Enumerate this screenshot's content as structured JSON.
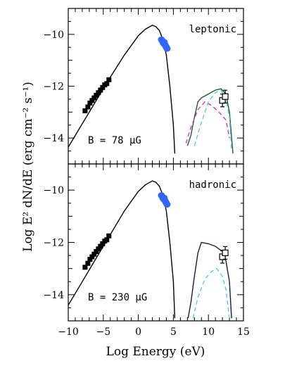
{
  "figure": {
    "ylabel": "Log E² dN/dE  (erg cm⁻² s⁻¹)",
    "xlabel": "Log Energy (eV)"
  },
  "chart_data": [
    {
      "type": "line",
      "panel": "top",
      "title": "leptonic",
      "annotation": "B = 78 μG",
      "xlim": [
        -10,
        15
      ],
      "ylim": [
        -15,
        -9
      ],
      "x_ticks": [
        -10,
        -5,
        0,
        5,
        10,
        15
      ],
      "y_ticks": [
        -14,
        -12,
        -10
      ],
      "y_tick_labels": [
        "−14",
        "−12",
        "−10"
      ],
      "series": [
        {
          "style": "solid",
          "color": "#000000",
          "points": [
            [
              -10,
              -14.35
            ],
            [
              -8,
              -13.45
            ],
            [
              -6,
              -12.55
            ],
            [
              -4,
              -11.65
            ],
            [
              -2,
              -10.8
            ],
            [
              0,
              -10.05
            ],
            [
              1,
              -9.8
            ],
            [
              2,
              -9.65
            ],
            [
              2.5,
              -9.7
            ],
            [
              3,
              -9.85
            ],
            [
              3.5,
              -10.2
            ],
            [
              4,
              -10.8
            ],
            [
              4.5,
              -12.0
            ],
            [
              5,
              -13.5
            ],
            [
              5.2,
              -14.6
            ]
          ]
        },
        {
          "style": "solid",
          "color": "#1f5a3a",
          "points": [
            [
              7,
              -14.3
            ],
            [
              7.5,
              -13.9
            ],
            [
              8,
              -13.2
            ],
            [
              8.5,
              -12.6
            ],
            [
              9,
              -12.45
            ],
            [
              10,
              -12.3
            ],
            [
              11,
              -12.15
            ],
            [
              11.8,
              -12.1
            ],
            [
              12.5,
              -12.3
            ],
            [
              13,
              -13.0
            ],
            [
              13.5,
              -14.6
            ]
          ]
        },
        {
          "style": "dashed",
          "color": "#cc33cc",
          "points": [
            [
              6.8,
              -14.2
            ],
            [
              7.5,
              -13.6
            ],
            [
              8.5,
              -12.9
            ],
            [
              9.5,
              -12.6
            ],
            [
              10.5,
              -12.75
            ],
            [
              11.5,
              -13.0
            ],
            [
              12.5,
              -13.3
            ],
            [
              13,
              -14.0
            ]
          ]
        },
        {
          "style": "dashed",
          "color": "#55d0d0",
          "points": [
            [
              8,
              -14.3
            ],
            [
              9,
              -13.4
            ],
            [
              10,
              -12.6
            ],
            [
              11,
              -12.25
            ],
            [
              11.8,
              -12.15
            ],
            [
              12.5,
              -12.5
            ],
            [
              13,
              -13.2
            ],
            [
              13.3,
              -14.5
            ]
          ]
        }
      ],
      "points": {
        "radio": {
          "color": "#000000",
          "x": [
            -7.6,
            -7.2,
            -6.9,
            -6.6,
            -6.3,
            -6.0,
            -5.7,
            -5.4,
            -5.1,
            -4.8,
            -4.5,
            -4.2
          ],
          "y": [
            -12.95,
            -12.8,
            -12.65,
            -12.55,
            -12.45,
            -12.35,
            -12.25,
            -12.15,
            -12.05,
            -11.95,
            -11.9,
            -11.75
          ]
        },
        "xray": {
          "color": "#3366ff",
          "x": [
            3.3,
            3.4,
            3.5,
            3.6,
            3.7,
            3.8,
            3.9,
            4.0,
            4.1
          ],
          "y": [
            -10.2,
            -10.25,
            -10.3,
            -10.35,
            -10.3,
            -10.4,
            -10.45,
            -10.5,
            -10.55
          ]
        },
        "gamma": {
          "x": [
            12.0,
            12.4
          ],
          "y": [
            -12.55,
            -12.4
          ]
        }
      }
    },
    {
      "type": "line",
      "panel": "bottom",
      "title": "hadronic",
      "annotation": "B = 230 μG",
      "xlim": [
        -10,
        15
      ],
      "ylim": [
        -15,
        -9
      ],
      "x_ticks": [
        -10,
        -5,
        0,
        5,
        10,
        15
      ],
      "x_tick_labels": [
        "−10",
        "−5",
        "0",
        "5",
        "10",
        "15"
      ],
      "y_ticks": [
        -14,
        -12,
        -10
      ],
      "y_tick_labels": [
        "−14",
        "−12",
        "−10"
      ],
      "series": [
        {
          "style": "solid",
          "color": "#000000",
          "points": [
            [
              -10,
              -14.4
            ],
            [
              -8,
              -13.5
            ],
            [
              -6,
              -12.6
            ],
            [
              -4,
              -11.7
            ],
            [
              -2,
              -10.8
            ],
            [
              0,
              -10.05
            ],
            [
              1,
              -9.8
            ],
            [
              2,
              -9.65
            ],
            [
              2.5,
              -9.7
            ],
            [
              3,
              -9.85
            ],
            [
              3.5,
              -10.2
            ],
            [
              4,
              -10.8
            ],
            [
              4.5,
              -12.0
            ],
            [
              5,
              -13.5
            ],
            [
              5.2,
              -14.9
            ]
          ]
        },
        {
          "style": "solid",
          "color": "#1a1a4a",
          "points": [
            [
              7.1,
              -14.9
            ],
            [
              7.5,
              -14.3
            ],
            [
              8,
              -13.3
            ],
            [
              8.5,
              -12.4
            ],
            [
              9,
              -12.0
            ],
            [
              10,
              -12.05
            ],
            [
              11,
              -12.15
            ],
            [
              12,
              -12.35
            ],
            [
              12.5,
              -12.7
            ],
            [
              13,
              -13.5
            ],
            [
              13.3,
              -14.9
            ]
          ]
        },
        {
          "style": "dashed",
          "color": "#55d0d0",
          "points": [
            [
              7.8,
              -14.9
            ],
            [
              8.5,
              -14.1
            ],
            [
              9.5,
              -13.4
            ],
            [
              10.5,
              -13.1
            ],
            [
              11.2,
              -13.0
            ],
            [
              12,
              -13.3
            ],
            [
              12.5,
              -13.8
            ],
            [
              13,
              -14.9
            ]
          ]
        }
      ],
      "points": {
        "radio": {
          "color": "#000000",
          "x": [
            -7.6,
            -7.2,
            -6.9,
            -6.6,
            -6.3,
            -6.0,
            -5.7,
            -5.4,
            -5.1,
            -4.8,
            -4.5,
            -4.2
          ],
          "y": [
            -12.95,
            -12.8,
            -12.65,
            -12.55,
            -12.45,
            -12.35,
            -12.25,
            -12.15,
            -12.05,
            -11.95,
            -11.9,
            -11.75
          ]
        },
        "xray": {
          "color": "#3366ff",
          "x": [
            3.3,
            3.4,
            3.5,
            3.6,
            3.7,
            3.8,
            3.9,
            4.0,
            4.1
          ],
          "y": [
            -10.2,
            -10.25,
            -10.3,
            -10.35,
            -10.3,
            -10.4,
            -10.45,
            -10.5,
            -10.55
          ]
        },
        "gamma": {
          "x": [
            12.0,
            12.4
          ],
          "y": [
            -12.55,
            -12.4
          ]
        }
      }
    }
  ]
}
